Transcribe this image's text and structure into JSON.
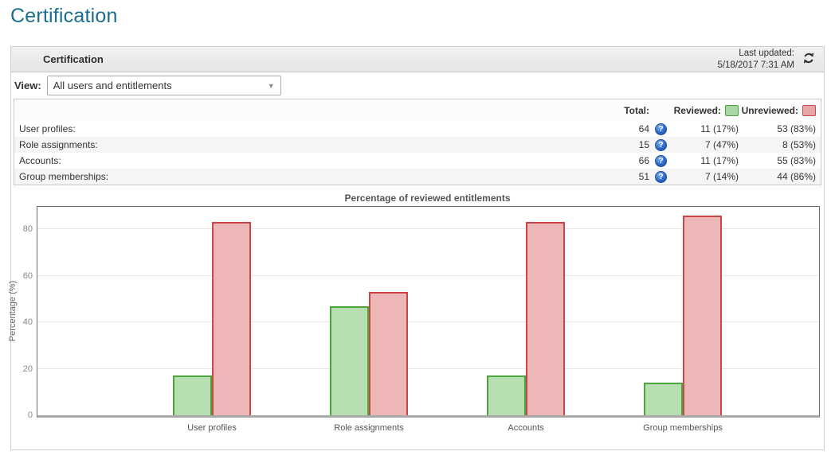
{
  "page": {
    "title": "Certification"
  },
  "panel": {
    "header": {
      "title": "Certification",
      "last_updated_label": "Last updated:",
      "last_updated_value": "5/18/2017 7:31 AM",
      "refresh_icon": "refresh-icon"
    },
    "view": {
      "label": "View:",
      "selected": "All users and entitlements",
      "dropdown_icon": "chevron-down-icon"
    },
    "summary_table": {
      "columns": {
        "total": "Total:",
        "reviewed": "Reviewed:",
        "unreviewed": "Unreviewed:"
      },
      "help_icon": "question-mark-icon",
      "rows": [
        {
          "label": "User profiles:",
          "total": "64",
          "reviewed": "11 (17%)",
          "unreviewed": "53 (83%)"
        },
        {
          "label": "Role assignments:",
          "total": "15",
          "reviewed": "7 (47%)",
          "unreviewed": "8 (53%)"
        },
        {
          "label": "Accounts:",
          "total": "66",
          "reviewed": "11 (17%)",
          "unreviewed": "55 (83%)"
        },
        {
          "label": "Group memberships:",
          "total": "51",
          "reviewed": "7 (14%)",
          "unreviewed": "44 (86%)"
        }
      ]
    }
  },
  "colors": {
    "accent": "#1a6e8e",
    "reviewed_fill": "#b6deb0",
    "reviewed_border": "#4fa33c",
    "unreviewed_fill": "#eeb7b7",
    "unreviewed_border": "#c94646"
  },
  "chart_data": {
    "type": "bar",
    "title": "Percentage of reviewed entitlements",
    "xlabel": "",
    "ylabel": "Percentage (%)",
    "categories": [
      "User profiles",
      "Role assignments",
      "Accounts",
      "Group memberships"
    ],
    "series": [
      {
        "name": "Reviewed",
        "values": [
          17,
          47,
          17,
          14
        ]
      },
      {
        "name": "Unreviewed",
        "values": [
          83,
          53,
          83,
          86
        ]
      }
    ],
    "ylim": [
      0,
      90
    ],
    "yticks": [
      0,
      20,
      40,
      60,
      80
    ],
    "grid": true,
    "legend_position": "table-header"
  }
}
